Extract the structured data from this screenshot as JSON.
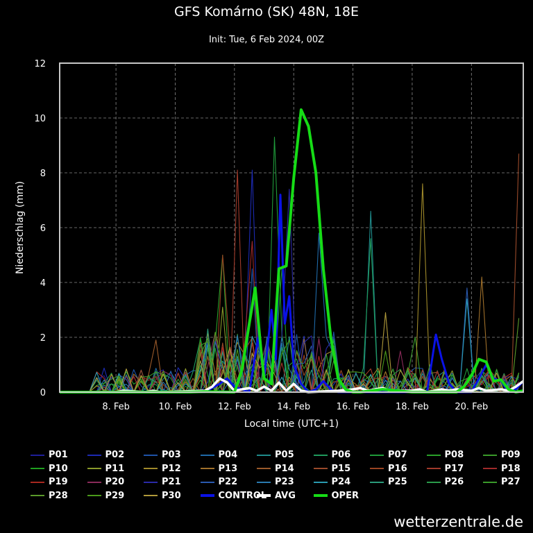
{
  "header": {
    "title": "GFS Komárno (SK) 48N, 18E",
    "subtitle": "Init: Tue, 6 Feb 2024, 00Z"
  },
  "brand": "wetterzentrale.de",
  "chart_data": {
    "type": "line",
    "title": "GFS Komárno (SK) 48N, 18E",
    "subtitle": "Init: Tue, 6 Feb 2024, 00Z",
    "xlabel": "Local time (UTC+1)",
    "ylabel": "Niederschlag (mm)",
    "x_unit": "days since 6 Feb 2024 00:00 local",
    "xlim": [
      0.1,
      15.75
    ],
    "ylim": [
      0,
      12
    ],
    "yticks": [
      0,
      2,
      4,
      6,
      8,
      10,
      12
    ],
    "xticks": [
      {
        "x": 2,
        "label": "8. Feb"
      },
      {
        "x": 4,
        "label": "10. Feb"
      },
      {
        "x": 6,
        "label": "12. Feb"
      },
      {
        "x": 8,
        "label": "14. Feb"
      },
      {
        "x": 10,
        "label": "16. Feb"
      },
      {
        "x": 12,
        "label": "18. Feb"
      },
      {
        "x": 14,
        "label": "20. Feb"
      }
    ],
    "grid": true,
    "legend_position": "bottom",
    "highlight_series": [
      {
        "name": "CONTROL",
        "color": "#0a12e6",
        "width": 3,
        "points": [
          [
            0.1,
            0
          ],
          [
            5,
            0
          ],
          [
            5.5,
            0.3
          ],
          [
            5.75,
            0.5
          ],
          [
            6,
            0.2
          ],
          [
            6.5,
            0
          ],
          [
            6.8,
            2.0
          ],
          [
            7,
            0.5
          ],
          [
            7.25,
            3.0
          ],
          [
            7.4,
            1.2
          ],
          [
            7.55,
            7.2
          ],
          [
            7.7,
            2.5
          ],
          [
            7.85,
            3.5
          ],
          [
            8,
            1.0
          ],
          [
            8.25,
            0.3
          ],
          [
            8.5,
            0
          ],
          [
            8.75,
            0.1
          ],
          [
            9,
            0.4
          ],
          [
            9.25,
            0.1
          ],
          [
            9.5,
            0
          ],
          [
            12.5,
            0
          ],
          [
            12.8,
            2.1
          ],
          [
            13,
            1.2
          ],
          [
            13.25,
            0.3
          ],
          [
            13.5,
            0
          ],
          [
            14,
            0
          ],
          [
            14.25,
            0.5
          ],
          [
            14.5,
            1.0
          ],
          [
            14.75,
            0.5
          ],
          [
            15,
            0.4
          ],
          [
            15.25,
            0
          ],
          [
            15.5,
            0.1
          ],
          [
            15.75,
            0.4
          ]
        ]
      },
      {
        "name": "AVG",
        "color": "#ffffff",
        "width": 3.5,
        "points": [
          [
            0.1,
            0
          ],
          [
            2,
            0
          ],
          [
            2.25,
            0.05
          ],
          [
            3,
            0
          ],
          [
            3.25,
            0.05
          ],
          [
            3.5,
            0
          ],
          [
            5,
            0.05
          ],
          [
            5.25,
            0.2
          ],
          [
            5.5,
            0.5
          ],
          [
            5.75,
            0.35
          ],
          [
            6,
            0.05
          ],
          [
            6.5,
            0.15
          ],
          [
            6.75,
            0.05
          ],
          [
            7,
            0.2
          ],
          [
            7.25,
            0.05
          ],
          [
            7.5,
            0.35
          ],
          [
            7.75,
            0.05
          ],
          [
            8,
            0.3
          ],
          [
            8.25,
            0.05
          ],
          [
            8.5,
            0
          ],
          [
            9.5,
            0.05
          ],
          [
            10,
            0.1
          ],
          [
            10.25,
            0.15
          ],
          [
            10.5,
            0.05
          ],
          [
            11,
            0.15
          ],
          [
            11.25,
            0.05
          ],
          [
            11.5,
            0.05
          ],
          [
            12,
            0.05
          ],
          [
            12.25,
            0.1
          ],
          [
            12.5,
            0
          ],
          [
            13,
            0.1
          ],
          [
            13.25,
            0.05
          ],
          [
            13.5,
            0.1
          ],
          [
            14,
            0.05
          ],
          [
            14.25,
            0.15
          ],
          [
            14.5,
            0.05
          ],
          [
            15,
            0.1
          ],
          [
            15.25,
            0.05
          ],
          [
            15.5,
            0.2
          ],
          [
            15.75,
            0.4
          ]
        ]
      },
      {
        "name": "OPER",
        "color": "#16dc16",
        "width": 4,
        "points": [
          [
            0.1,
            0
          ],
          [
            4.5,
            0
          ],
          [
            5,
            0.02
          ],
          [
            6,
            0
          ],
          [
            6.25,
            0.8
          ],
          [
            6.5,
            2.5
          ],
          [
            6.7,
            3.8
          ],
          [
            6.9,
            1.5
          ],
          [
            7,
            0.5
          ],
          [
            7.25,
            0.3
          ],
          [
            7.5,
            4.5
          ],
          [
            7.75,
            4.6
          ],
          [
            8,
            7.8
          ],
          [
            8.25,
            10.3
          ],
          [
            8.5,
            9.7
          ],
          [
            8.75,
            8.0
          ],
          [
            9,
            4.5
          ],
          [
            9.25,
            2.0
          ],
          [
            9.5,
            0.5
          ],
          [
            9.75,
            0.1
          ],
          [
            10,
            0
          ],
          [
            10.25,
            0
          ],
          [
            11,
            0.1
          ],
          [
            11.5,
            0.05
          ],
          [
            12,
            0
          ],
          [
            13,
            0
          ],
          [
            13.5,
            0
          ],
          [
            13.75,
            0.2
          ],
          [
            14,
            0.6
          ],
          [
            14.25,
            1.2
          ],
          [
            14.5,
            1.1
          ],
          [
            14.75,
            0.4
          ],
          [
            15,
            0.45
          ],
          [
            15.25,
            0.1
          ],
          [
            15.5,
            0
          ],
          [
            15.75,
            0.05
          ]
        ]
      }
    ],
    "ensemble_series": [
      {
        "name": "P01",
        "color": "#1e1e99"
      },
      {
        "name": "P02",
        "color": "#1c2ab3"
      },
      {
        "name": "P03",
        "color": "#1e53a8"
      },
      {
        "name": "P04",
        "color": "#1f6aa8"
      },
      {
        "name": "P05",
        "color": "#1f8c8c"
      },
      {
        "name": "P06",
        "color": "#1f9a5c"
      },
      {
        "name": "P07",
        "color": "#1f9a3a"
      },
      {
        "name": "P08",
        "color": "#2aa02a"
      },
      {
        "name": "P09",
        "color": "#3a9a2a"
      },
      {
        "name": "P10",
        "color": "#1fa01f"
      },
      {
        "name": "P11",
        "color": "#8a9a2a"
      },
      {
        "name": "P12",
        "color": "#a08a2a"
      },
      {
        "name": "P13",
        "color": "#a0702a"
      },
      {
        "name": "P14",
        "color": "#9a5a2a"
      },
      {
        "name": "P15",
        "color": "#9a4a2a"
      },
      {
        "name": "P16",
        "color": "#9a4422"
      },
      {
        "name": "P17",
        "color": "#a03a2a"
      },
      {
        "name": "P18",
        "color": "#a02a2a"
      },
      {
        "name": "P19",
        "color": "#a8281f"
      },
      {
        "name": "P20",
        "color": "#8a2a5a"
      },
      {
        "name": "P21",
        "color": "#2a2aa8"
      },
      {
        "name": "P22",
        "color": "#2a5ab0"
      },
      {
        "name": "P23",
        "color": "#2a7ab0"
      },
      {
        "name": "P24",
        "color": "#2a9ab0"
      },
      {
        "name": "P25",
        "color": "#2a9a7a"
      },
      {
        "name": "P26",
        "color": "#2a9a4a"
      },
      {
        "name": "P27",
        "color": "#3a9a2a"
      },
      {
        "name": "P28",
        "color": "#5a9a2a"
      },
      {
        "name": "P29",
        "color": "#4a9a1a"
      },
      {
        "name": "P30",
        "color": "#b09a3a"
      }
    ],
    "ensemble_peaks": [
      {
        "series": "P01",
        "x": 1.6,
        "y": 0.6
      },
      {
        "series": "P02",
        "x": 6.5,
        "y": 8.1
      },
      {
        "series": "P03",
        "x": 6.5,
        "y": 4.5
      },
      {
        "series": "P04",
        "x": 8.8,
        "y": 5.8
      },
      {
        "series": "P05",
        "x": 10.7,
        "y": 6.6
      },
      {
        "series": "P06",
        "x": 10.5,
        "y": 5.6
      },
      {
        "series": "P07",
        "x": 7.3,
        "y": 9.3
      },
      {
        "series": "P08",
        "x": 5.7,
        "y": 5.0
      },
      {
        "series": "P09",
        "x": 12.0,
        "y": 2.0
      },
      {
        "series": "P10",
        "x": 7.6,
        "y": 4.5
      },
      {
        "series": "P11",
        "x": 5.5,
        "y": 3.1
      },
      {
        "series": "P12",
        "x": 12.3,
        "y": 7.6
      },
      {
        "series": "P13",
        "x": 14.3,
        "y": 4.2
      },
      {
        "series": "P14",
        "x": 3.3,
        "y": 1.9
      },
      {
        "series": "P15",
        "x": 15.7,
        "y": 8.7
      },
      {
        "series": "P16",
        "x": 5.5,
        "y": 5.0
      },
      {
        "series": "P17",
        "x": 6.0,
        "y": 8.1
      },
      {
        "series": "P18",
        "x": 6.7,
        "y": 5.5
      },
      {
        "series": "P19",
        "x": 1.6,
        "y": 0.5
      },
      {
        "series": "P20",
        "x": 11.5,
        "y": 1.5
      },
      {
        "series": "P21",
        "x": 7.8,
        "y": 7.4
      },
      {
        "series": "P22",
        "x": 13.9,
        "y": 3.8
      },
      {
        "series": "P23",
        "x": 9.3,
        "y": 1.9
      },
      {
        "series": "P24",
        "x": 13.8,
        "y": 3.4
      },
      {
        "series": "P25",
        "x": 5.2,
        "y": 2.3
      },
      {
        "series": "P26",
        "x": 5.0,
        "y": 1.6
      },
      {
        "series": "P27",
        "x": 12.7,
        "y": 1.0
      },
      {
        "series": "P28",
        "x": 15.7,
        "y": 2.7
      },
      {
        "series": "P29",
        "x": 11.0,
        "y": 1.5
      },
      {
        "series": "P30",
        "x": 11.1,
        "y": 2.9
      }
    ]
  },
  "legend": {
    "items": [
      {
        "label": "P01",
        "color": "#1e1e99"
      },
      {
        "label": "P02",
        "color": "#1c2ab3"
      },
      {
        "label": "P03",
        "color": "#1e53a8"
      },
      {
        "label": "P04",
        "color": "#1f6aa8"
      },
      {
        "label": "P05",
        "color": "#1f8c8c"
      },
      {
        "label": "P06",
        "color": "#1f9a5c"
      },
      {
        "label": "P07",
        "color": "#1f9a3a"
      },
      {
        "label": "P08",
        "color": "#2aa02a"
      },
      {
        "label": "P09",
        "color": "#3a9a2a"
      },
      {
        "label": "P10",
        "color": "#1fa01f"
      },
      {
        "label": "P11",
        "color": "#8a9a2a"
      },
      {
        "label": "P12",
        "color": "#a08a2a"
      },
      {
        "label": "P13",
        "color": "#a0702a"
      },
      {
        "label": "P14",
        "color": "#9a5a2a"
      },
      {
        "label": "P15",
        "color": "#9a4a2a"
      },
      {
        "label": "P16",
        "color": "#9a4422"
      },
      {
        "label": "P17",
        "color": "#a03a2a"
      },
      {
        "label": "P18",
        "color": "#a02a2a"
      },
      {
        "label": "P19",
        "color": "#a8281f"
      },
      {
        "label": "P20",
        "color": "#8a2a5a"
      },
      {
        "label": "P21",
        "color": "#2a2aa8"
      },
      {
        "label": "P22",
        "color": "#2a5ab0"
      },
      {
        "label": "P23",
        "color": "#2a7ab0"
      },
      {
        "label": "P24",
        "color": "#2a9ab0"
      },
      {
        "label": "P25",
        "color": "#2a9a7a"
      },
      {
        "label": "P26",
        "color": "#2a9a4a"
      },
      {
        "label": "P27",
        "color": "#3a9a2a"
      },
      {
        "label": "P28",
        "color": "#5a9a2a"
      },
      {
        "label": "P29",
        "color": "#4a9a1a"
      },
      {
        "label": "P30",
        "color": "#b09a3a"
      },
      {
        "label": "CONTROL",
        "color": "#0a12e6",
        "thick": true
      },
      {
        "label": "AVG",
        "color": "#ffffff",
        "thick": true
      },
      {
        "label": "OPER",
        "color": "#16dc16",
        "thick": true
      }
    ]
  }
}
